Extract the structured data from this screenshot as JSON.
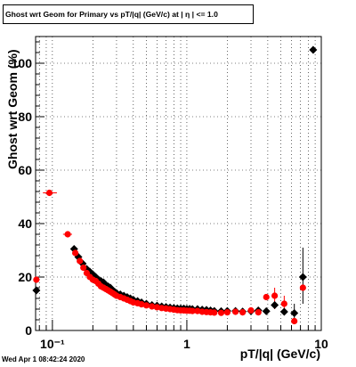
{
  "title": "Ghost wrt Geom for Primary vs pT/|q| (GeV/c) at | η | <= 1.0",
  "timestamp": "Wed Apr  1 08:42:24 2020",
  "chart_data": {
    "type": "scatter",
    "title": "Ghost wrt Geom for Primary vs pT/|q| (GeV/c) at | η | <= 1.0",
    "xlabel": "pT/|q| (GeV/c)",
    "ylabel": "Ghost wrt Geom (%)",
    "x_scale": "log",
    "xlim": [
      0.075,
      10
    ],
    "ylim": [
      0,
      110
    ],
    "x_ticks": [
      {
        "v": 0.1,
        "label": "10⁻¹"
      },
      {
        "v": 1,
        "label": "1"
      },
      {
        "v": 10,
        "label": "10"
      }
    ],
    "y_ticks": [
      0,
      20,
      40,
      60,
      80,
      100
    ],
    "grid": true,
    "series": [
      {
        "color": "#000000",
        "marker": "diamond",
        "points": [
          {
            "x": 0.076,
            "y": 15
          },
          {
            "x": 0.145,
            "y": 30.5
          },
          {
            "x": 0.156,
            "y": 27.5
          },
          {
            "x": 0.168,
            "y": 25
          },
          {
            "x": 0.18,
            "y": 23
          },
          {
            "x": 0.19,
            "y": 22
          },
          {
            "x": 0.2,
            "y": 21
          },
          {
            "x": 0.21,
            "y": 20
          },
          {
            "x": 0.22,
            "y": 19
          },
          {
            "x": 0.23,
            "y": 18.5
          },
          {
            "x": 0.24,
            "y": 18
          },
          {
            "x": 0.25,
            "y": 17
          },
          {
            "x": 0.26,
            "y": 16.5
          },
          {
            "x": 0.27,
            "y": 16
          },
          {
            "x": 0.28,
            "y": 15
          },
          {
            "x": 0.29,
            "y": 14.5
          },
          {
            "x": 0.3,
            "y": 14
          },
          {
            "x": 0.32,
            "y": 13.5
          },
          {
            "x": 0.34,
            "y": 13
          },
          {
            "x": 0.36,
            "y": 12.5
          },
          {
            "x": 0.38,
            "y": 12
          },
          {
            "x": 0.4,
            "y": 11.5
          },
          {
            "x": 0.43,
            "y": 11
          },
          {
            "x": 0.46,
            "y": 10.5
          },
          {
            "x": 0.5,
            "y": 10
          },
          {
            "x": 0.55,
            "y": 9.5
          },
          {
            "x": 0.6,
            "y": 9.3
          },
          {
            "x": 0.65,
            "y": 9
          },
          {
            "x": 0.7,
            "y": 8.8
          },
          {
            "x": 0.75,
            "y": 8.6
          },
          {
            "x": 0.8,
            "y": 8.4
          },
          {
            "x": 0.85,
            "y": 8.3
          },
          {
            "x": 0.9,
            "y": 8.2
          },
          {
            "x": 0.95,
            "y": 8.2
          },
          {
            "x": 1.0,
            "y": 8.1
          },
          {
            "x": 1.05,
            "y": 8.1
          },
          {
            "x": 1.1,
            "y": 8
          },
          {
            "x": 1.2,
            "y": 8
          },
          {
            "x": 1.3,
            "y": 7.8
          },
          {
            "x": 1.4,
            "y": 7.7
          },
          {
            "x": 1.5,
            "y": 7.5
          },
          {
            "x": 1.6,
            "y": 7.3
          },
          {
            "x": 1.8,
            "y": 7.2
          },
          {
            "x": 2.0,
            "y": 7.3
          },
          {
            "x": 2.3,
            "y": 7.3
          },
          {
            "x": 2.6,
            "y": 7.1
          },
          {
            "x": 3.0,
            "y": 7.2
          },
          {
            "x": 3.4,
            "y": 7.5
          },
          {
            "x": 3.9,
            "y": 7.2
          },
          {
            "x": 4.5,
            "y": 9.5
          },
          {
            "x": 5.3,
            "y": 7
          },
          {
            "x": 6.3,
            "y": 6.5
          },
          {
            "x": 7.3,
            "y": 20
          },
          {
            "x": 8.7,
            "y": 105
          }
        ]
      },
      {
        "color": "#ff0000",
        "marker": "circle",
        "points": [
          {
            "x": 0.076,
            "y": 19
          },
          {
            "x": 0.095,
            "y": 51.5
          },
          {
            "x": 0.13,
            "y": 36
          },
          {
            "x": 0.148,
            "y": 29
          },
          {
            "x": 0.16,
            "y": 26
          },
          {
            "x": 0.17,
            "y": 23.5
          },
          {
            "x": 0.18,
            "y": 21.5
          },
          {
            "x": 0.19,
            "y": 20
          },
          {
            "x": 0.2,
            "y": 19
          },
          {
            "x": 0.21,
            "y": 18.5
          },
          {
            "x": 0.22,
            "y": 17.5
          },
          {
            "x": 0.23,
            "y": 16.5
          },
          {
            "x": 0.24,
            "y": 16
          },
          {
            "x": 0.25,
            "y": 15.5
          },
          {
            "x": 0.26,
            "y": 15
          },
          {
            "x": 0.27,
            "y": 14.5
          },
          {
            "x": 0.28,
            "y": 14
          },
          {
            "x": 0.29,
            "y": 13.5
          },
          {
            "x": 0.3,
            "y": 13
          },
          {
            "x": 0.32,
            "y": 12.5
          },
          {
            "x": 0.34,
            "y": 12
          },
          {
            "x": 0.36,
            "y": 11.5
          },
          {
            "x": 0.38,
            "y": 11
          },
          {
            "x": 0.4,
            "y": 10.5
          },
          {
            "x": 0.43,
            "y": 10.2
          },
          {
            "x": 0.46,
            "y": 9.8
          },
          {
            "x": 0.5,
            "y": 9.4
          },
          {
            "x": 0.55,
            "y": 9
          },
          {
            "x": 0.6,
            "y": 8.7
          },
          {
            "x": 0.65,
            "y": 8.4
          },
          {
            "x": 0.7,
            "y": 8.2
          },
          {
            "x": 0.75,
            "y": 8
          },
          {
            "x": 0.8,
            "y": 7.8
          },
          {
            "x": 0.85,
            "y": 7.6
          },
          {
            "x": 0.9,
            "y": 7.5
          },
          {
            "x": 0.95,
            "y": 7.5
          },
          {
            "x": 1.0,
            "y": 7.4
          },
          {
            "x": 1.05,
            "y": 7.4
          },
          {
            "x": 1.1,
            "y": 7.3
          },
          {
            "x": 1.2,
            "y": 7.3
          },
          {
            "x": 1.3,
            "y": 7
          },
          {
            "x": 1.4,
            "y": 6.9
          },
          {
            "x": 1.5,
            "y": 6.8
          },
          {
            "x": 1.6,
            "y": 6.7
          },
          {
            "x": 1.8,
            "y": 6.6
          },
          {
            "x": 2.0,
            "y": 6.8
          },
          {
            "x": 2.3,
            "y": 7
          },
          {
            "x": 2.6,
            "y": 6.8
          },
          {
            "x": 3.0,
            "y": 7.5
          },
          {
            "x": 3.4,
            "y": 6.8
          },
          {
            "x": 3.9,
            "y": 12.5
          },
          {
            "x": 4.5,
            "y": 13
          },
          {
            "x": 5.3,
            "y": 10
          },
          {
            "x": 6.3,
            "y": 3.5
          },
          {
            "x": 7.3,
            "y": 16
          }
        ]
      }
    ],
    "error_bars": [
      {
        "series": 0,
        "x": 7.3,
        "y": 20,
        "ylo": 10,
        "yhi": 31
      },
      {
        "series": 1,
        "x": 0.095,
        "y": 51.5,
        "xlo": 0.085,
        "xhi": 0.108
      },
      {
        "series": 1,
        "x": 0.13,
        "y": 36,
        "xlo": 0.12,
        "xhi": 0.14
      },
      {
        "series": 1,
        "x": 4.5,
        "y": 13,
        "ylo": 8,
        "yhi": 16
      },
      {
        "series": 1,
        "x": 5.3,
        "y": 10,
        "ylo": 6,
        "yhi": 13
      },
      {
        "series": 0,
        "x": 6.3,
        "y": 6.5,
        "ylo": 3,
        "yhi": 10
      }
    ]
  }
}
